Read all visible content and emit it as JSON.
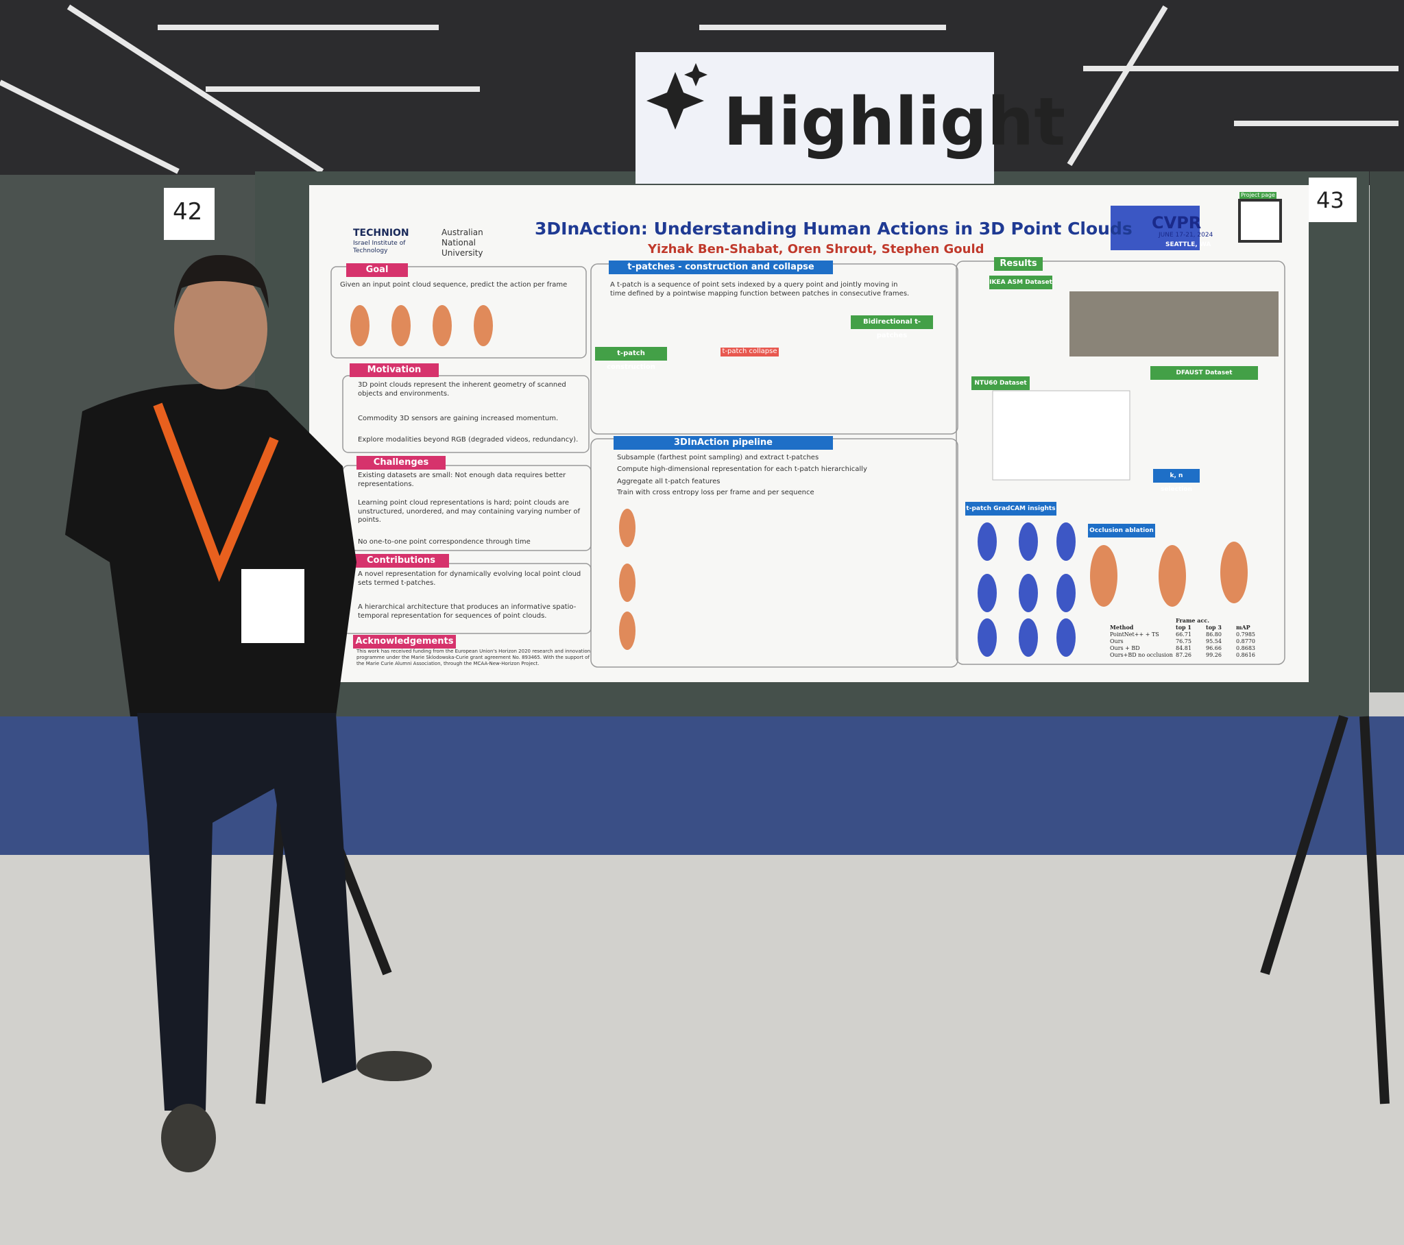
{
  "sign": {
    "text": "Highlight"
  },
  "board_numbers": [
    "42",
    "43"
  ],
  "poster": {
    "title": "3DInAction: Understanding Human Actions in 3D Point Clouds",
    "authors": "Yizhak Ben-Shabat, Oren Shrout, Stephen Gould",
    "logos": {
      "technion": "TECHNION",
      "technion_sub": "Israel Institute of Technology",
      "anu": "Australian National University",
      "cvpr": "CVPR",
      "cvpr_dates": "JUNE 17-21, 2024",
      "cvpr_place": "SEATTLE, WA",
      "project": "Project page"
    },
    "goal": {
      "header": "Goal",
      "text": "Given an input point cloud sequence, predict the action per frame"
    },
    "motivation": {
      "header": "Motivation",
      "bullets": [
        "3D point clouds represent the inherent geometry of scanned objects and environments.",
        "Commodity 3D sensors are gaining increased momentum.",
        "Explore modalities beyond RGB (degraded videos, redundancy)."
      ]
    },
    "challenges": {
      "header": "Challenges",
      "bullets": [
        "Existing datasets are small: Not enough data requires better representations.",
        "Learning point cloud representations is hard; point clouds are unstructured, unordered, and may containing varying number of points.",
        "No one-to-one point correspondence through time"
      ]
    },
    "contributions": {
      "header": "Contributions",
      "bullets": [
        "A novel representation for dynamically evolving local point cloud sets termed t-patches.",
        "A hierarchical architecture that produces an informative spatio-temporal representation for sequences of point clouds."
      ]
    },
    "acknowledgements": {
      "header": "Acknowledgements",
      "text": "This work has received funding from the European Union's Horizon 2020 research and innovation programme under the Marie Sklodowska-Curie grant agreement No. 893465. With the support of the Marie Curie Alumni Association, through the MCAA-New-Horizon Project."
    },
    "tpatches": {
      "header": "t-patches - construction and collapse",
      "text": "A t-patch is a sequence of point sets indexed by a query point and jointly moving in time defined by a pointwise mapping function between patches in consecutive frames.",
      "construction": "t-patch construction",
      "collapse": "t-patch collapse",
      "bidirectional": "Bidirectional t-patches"
    },
    "pipeline": {
      "header": "3DInAction pipeline",
      "bullets": [
        "Subsample (farthest point sampling) and extract t-patches",
        "Compute high-dimensional representation for each t-patch hierarchically",
        "Aggregate all t-patch features",
        "Train with cross entropy loss per frame and per sequence"
      ]
    },
    "results": {
      "header": "Results",
      "ikea": "IKEA ASM Dataset",
      "ntu": "NTU60 Dataset",
      "dfaust": "DFAUST Dataset",
      "kn": "k, n selection",
      "gradcam": "t-patch GradCAM insights",
      "occlusion": "Occlusion ablation"
    },
    "occlusion_table": {
      "header": [
        "Method",
        "top 1",
        "top 3",
        "mAP"
      ],
      "group": "Frame acc.",
      "rows": [
        [
          "PointNet++ + TS",
          "66.71",
          "86.80",
          "0.7985"
        ],
        [
          "Ours",
          "76.75",
          "95.54",
          "0.8770"
        ],
        [
          "Ours + BD",
          "84.81",
          "96.66",
          "0.8683"
        ],
        [
          "Ours+BD no occlusion",
          "87.26",
          "99.26",
          "0.8616"
        ]
      ]
    }
  }
}
